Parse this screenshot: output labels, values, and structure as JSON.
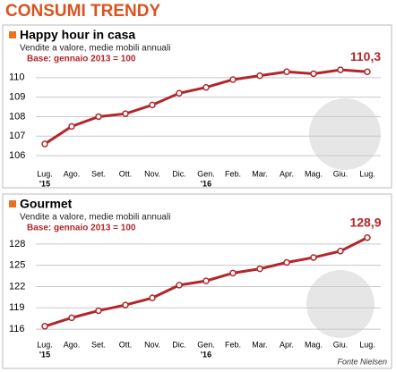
{
  "title": "CONSUMI TRENDY",
  "source": "Fonte Nielsen",
  "chart_data": [
    {
      "type": "line",
      "title": "Happy hour in casa",
      "subtitle": "Vendite a valore, medie mobili annuali",
      "note": "Base: gennaio 2013 = 100",
      "categories": [
        "Lug.",
        "Ago.",
        "Set.",
        "Ott.",
        "Nov.",
        "Dic.",
        "Gen.",
        "Feb.",
        "Mar.",
        "Apr.",
        "Mag.",
        "Giu.",
        "Lug."
      ],
      "year_labels": [
        "'15",
        null,
        null,
        null,
        null,
        null,
        "'16",
        null,
        null,
        null,
        null,
        null,
        null
      ],
      "values": [
        106.6,
        107.5,
        108.0,
        108.15,
        108.6,
        109.2,
        109.5,
        109.9,
        110.1,
        110.3,
        110.2,
        110.4,
        110.3
      ],
      "value_labels": [
        null,
        null,
        null,
        null,
        null,
        null,
        null,
        null,
        null,
        null,
        null,
        null,
        "110,3"
      ],
      "ylim": [
        105.5,
        111
      ],
      "yticks": [
        106,
        107,
        108,
        109,
        110
      ],
      "color": "#b3262b",
      "grid": true
    },
    {
      "type": "line",
      "title": "Gourmet",
      "subtitle": "Vendite a valore, medie mobili annuali",
      "note": "Base: gennaio 2013 = 100",
      "categories": [
        "Lug.",
        "Ago.",
        "Set.",
        "Ott.",
        "Nov.",
        "Dic.",
        "Gen.",
        "Feb.",
        "Mar.",
        "Apr.",
        "Mag.",
        "Giu.",
        "Lug."
      ],
      "year_labels": [
        "'15",
        null,
        null,
        null,
        null,
        null,
        "'16",
        null,
        null,
        null,
        null,
        null,
        null
      ],
      "values": [
        116.4,
        117.6,
        118.6,
        119.4,
        120.4,
        122.2,
        122.8,
        123.9,
        124.5,
        125.4,
        126.1,
        127.0,
        128.9
      ],
      "value_labels": [
        null,
        null,
        null,
        null,
        null,
        null,
        null,
        null,
        null,
        null,
        null,
        null,
        "128,9"
      ],
      "ylim": [
        115,
        130
      ],
      "yticks": [
        116,
        119,
        122,
        125,
        128
      ],
      "color": "#b3262b",
      "grid": true
    }
  ]
}
